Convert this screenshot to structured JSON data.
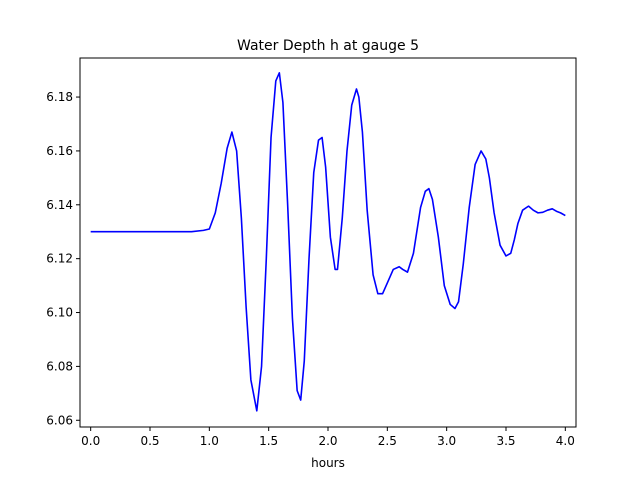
{
  "chart_data": {
    "type": "line",
    "title": "Water Depth h at gauge 5",
    "xlabel": "hours",
    "ylabel": "",
    "xlim": [
      -0.09,
      4.09
    ],
    "ylim": [
      6.0575,
      6.1945
    ],
    "xticks": [
      "0.0",
      "0.5",
      "1.0",
      "1.5",
      "2.0",
      "2.5",
      "3.0",
      "3.5",
      "4.0"
    ],
    "yticks": [
      "6.06",
      "6.08",
      "6.10",
      "6.12",
      "6.14",
      "6.16",
      "6.18"
    ],
    "grid": false,
    "series": [
      {
        "color": "#0000ff",
        "x": [
          0.0,
          0.5,
          0.85,
          0.95,
          1.0,
          1.05,
          1.1,
          1.15,
          1.19,
          1.23,
          1.27,
          1.31,
          1.35,
          1.4,
          1.44,
          1.48,
          1.52,
          1.56,
          1.59,
          1.62,
          1.66,
          1.7,
          1.74,
          1.77,
          1.8,
          1.84,
          1.88,
          1.92,
          1.95,
          1.98,
          2.02,
          2.06,
          2.08,
          2.12,
          2.16,
          2.2,
          2.24,
          2.26,
          2.29,
          2.33,
          2.38,
          2.42,
          2.46,
          2.5,
          2.55,
          2.6,
          2.63,
          2.67,
          2.72,
          2.78,
          2.82,
          2.85,
          2.88,
          2.93,
          2.98,
          3.03,
          3.07,
          3.1,
          3.14,
          3.19,
          3.24,
          3.29,
          3.33,
          3.36,
          3.4,
          3.45,
          3.5,
          3.54,
          3.57,
          3.6,
          3.64,
          3.69,
          3.73,
          3.77,
          3.81,
          3.85,
          3.89,
          3.93,
          3.96,
          4.0
        ],
        "y": [
          6.13,
          6.13,
          6.13,
          6.1305,
          6.131,
          6.137,
          6.148,
          6.161,
          6.167,
          6.16,
          6.135,
          6.102,
          6.075,
          6.0635,
          6.08,
          6.12,
          6.165,
          6.186,
          6.189,
          6.178,
          6.14,
          6.098,
          6.071,
          6.0675,
          6.082,
          6.12,
          6.152,
          6.164,
          6.165,
          6.154,
          6.128,
          6.116,
          6.116,
          6.135,
          6.16,
          6.177,
          6.183,
          6.18,
          6.167,
          6.138,
          6.114,
          6.107,
          6.107,
          6.111,
          6.116,
          6.117,
          6.116,
          6.115,
          6.122,
          6.139,
          6.145,
          6.146,
          6.142,
          6.128,
          6.11,
          6.103,
          6.1015,
          6.104,
          6.118,
          6.139,
          6.155,
          6.16,
          6.157,
          6.15,
          6.137,
          6.125,
          6.121,
          6.122,
          6.127,
          6.133,
          6.138,
          6.1395,
          6.138,
          6.137,
          6.1372,
          6.138,
          6.1385,
          6.1375,
          6.137,
          6.136
        ]
      }
    ]
  }
}
